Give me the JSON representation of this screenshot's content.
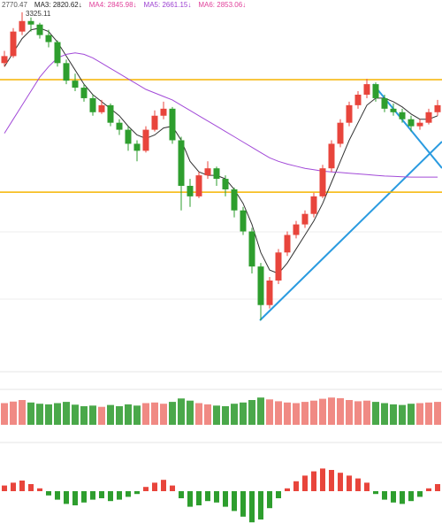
{
  "chart_data": {
    "type": "candlestick",
    "up_color": "#e8453c",
    "down_color": "#2e9e2e",
    "ylim": [
      2300,
      3360
    ],
    "legend": [
      {
        "text": "2770.47",
        "color": "#555555"
      },
      {
        "text": "MA3: 2820.62↓",
        "color": "#222222"
      },
      {
        "text": "MA4: 2845.98↓",
        "color": "#e0409a"
      },
      {
        "text": "MA5: 2661.15↓",
        "color": "#9b3fd0"
      },
      {
        "text": "MA6: 2853.06↓",
        "color": "#e0409a"
      }
    ],
    "high_label": "3325.11",
    "candles": [
      [
        3180,
        3215,
        3170,
        3200
      ],
      [
        3200,
        3280,
        3195,
        3270
      ],
      [
        3270,
        3325.11,
        3260,
        3300
      ],
      [
        3300,
        3310,
        3270,
        3290
      ],
      [
        3290,
        3295,
        3250,
        3260
      ],
      [
        3260,
        3275,
        3225,
        3240
      ],
      [
        3240,
        3245,
        3170,
        3180
      ],
      [
        3180,
        3190,
        3120,
        3130
      ],
      [
        3130,
        3150,
        3100,
        3110
      ],
      [
        3110,
        3120,
        3070,
        3080
      ],
      [
        3080,
        3090,
        3030,
        3040
      ],
      [
        3040,
        3075,
        3035,
        3060
      ],
      [
        3060,
        3065,
        3000,
        3010
      ],
      [
        3010,
        3020,
        2975,
        2990
      ],
      [
        2990,
        3000,
        2930,
        2950
      ],
      [
        2950,
        2960,
        2900,
        2930
      ],
      [
        2930,
        3000,
        2925,
        2990
      ],
      [
        2990,
        3045,
        2985,
        3030
      ],
      [
        3030,
        3070,
        3020,
        3050
      ],
      [
        3050,
        3055,
        2950,
        2960
      ],
      [
        2960,
        2970,
        2760,
        2830
      ],
      [
        2830,
        2850,
        2770,
        2800
      ],
      [
        2800,
        2870,
        2795,
        2860
      ],
      [
        2860,
        2900,
        2850,
        2880
      ],
      [
        2880,
        2885,
        2830,
        2850
      ],
      [
        2850,
        2860,
        2800,
        2820
      ],
      [
        2820,
        2825,
        2740,
        2760
      ],
      [
        2760,
        2770,
        2690,
        2700
      ],
      [
        2700,
        2710,
        2580,
        2600
      ],
      [
        2600,
        2610,
        2447,
        2490
      ],
      [
        2490,
        2570,
        2480,
        2560
      ],
      [
        2560,
        2650,
        2550,
        2640
      ],
      [
        2640,
        2700,
        2630,
        2690
      ],
      [
        2690,
        2730,
        2680,
        2720
      ],
      [
        2720,
        2760,
        2710,
        2750
      ],
      [
        2750,
        2810,
        2740,
        2800
      ],
      [
        2800,
        2890,
        2795,
        2880
      ],
      [
        2880,
        2960,
        2870,
        2950
      ],
      [
        2950,
        3020,
        2940,
        3010
      ],
      [
        3010,
        3070,
        3000,
        3060
      ],
      [
        3060,
        3100,
        3050,
        3090
      ],
      [
        3090,
        3135,
        3080,
        3120
      ],
      [
        3120,
        3125,
        3070,
        3080
      ],
      [
        3080,
        3090,
        3040,
        3050
      ],
      [
        3050,
        3065,
        3030,
        3040
      ],
      [
        3040,
        3050,
        3010,
        3020
      ],
      [
        3020,
        3030,
        2985,
        3000
      ],
      [
        3000,
        3020,
        2990,
        3010
      ],
      [
        3010,
        3050,
        3005,
        3040
      ],
      [
        3040,
        3075,
        3030,
        3060
      ]
    ],
    "series": [
      {
        "color": "#333333",
        "values": [
          3170,
          3210,
          3250,
          3275,
          3280,
          3270,
          3240,
          3200,
          3160,
          3120,
          3090,
          3070,
          3050,
          3030,
          3000,
          2975,
          2965,
          2975,
          2995,
          3000,
          2960,
          2900,
          2870,
          2860,
          2860,
          2850,
          2820,
          2780,
          2720,
          2640,
          2590,
          2580,
          2610,
          2650,
          2690,
          2730,
          2780,
          2840,
          2900,
          2960,
          3010,
          3060,
          3080,
          3080,
          3070,
          3055,
          3035,
          3020,
          3020,
          3030
        ]
      },
      {
        "color": "#a24ad8",
        "values": [
          2980,
          3020,
          3060,
          3100,
          3140,
          3170,
          3195,
          3205,
          3209,
          3205,
          3195,
          3180,
          3165,
          3150,
          3135,
          3120,
          3105,
          3095,
          3085,
          3075,
          3060,
          3045,
          3030,
          3015,
          3000,
          2985,
          2970,
          2955,
          2940,
          2925,
          2910,
          2900,
          2892,
          2886,
          2880,
          2876,
          2872,
          2870,
          2868,
          2866,
          2864,
          2862,
          2860,
          2858,
          2857,
          2856,
          2855,
          2855,
          2855,
          2855
        ]
      }
    ],
    "levels": [
      3133,
      2812
    ],
    "level_color": "#f5b400",
    "volume": {
      "ylim": [
        0,
        100
      ],
      "values": [
        70,
        75,
        80,
        72,
        68,
        66,
        70,
        74,
        65,
        60,
        62,
        58,
        64,
        60,
        66,
        62,
        70,
        72,
        68,
        74,
        85,
        78,
        70,
        66,
        62,
        60,
        68,
        72,
        80,
        88,
        82,
        76,
        72,
        70,
        74,
        78,
        84,
        88,
        86,
        80,
        76,
        78,
        74,
        70,
        66,
        64,
        68,
        70,
        72,
        74
      ]
    },
    "macd": {
      "ylim": [
        -50,
        50
      ],
      "values": [
        8,
        12,
        15,
        10,
        4,
        -6,
        -12,
        -18,
        -20,
        -16,
        -12,
        -10,
        -14,
        -12,
        -8,
        -4,
        6,
        12,
        16,
        8,
        -10,
        -22,
        -20,
        -14,
        -16,
        -22,
        -28,
        -36,
        -44,
        -40,
        -24,
        -10,
        4,
        14,
        22,
        28,
        32,
        30,
        26,
        22,
        18,
        12,
        -4,
        -12,
        -16,
        -18,
        -14,
        -8,
        4,
        10
      ]
    }
  }
}
